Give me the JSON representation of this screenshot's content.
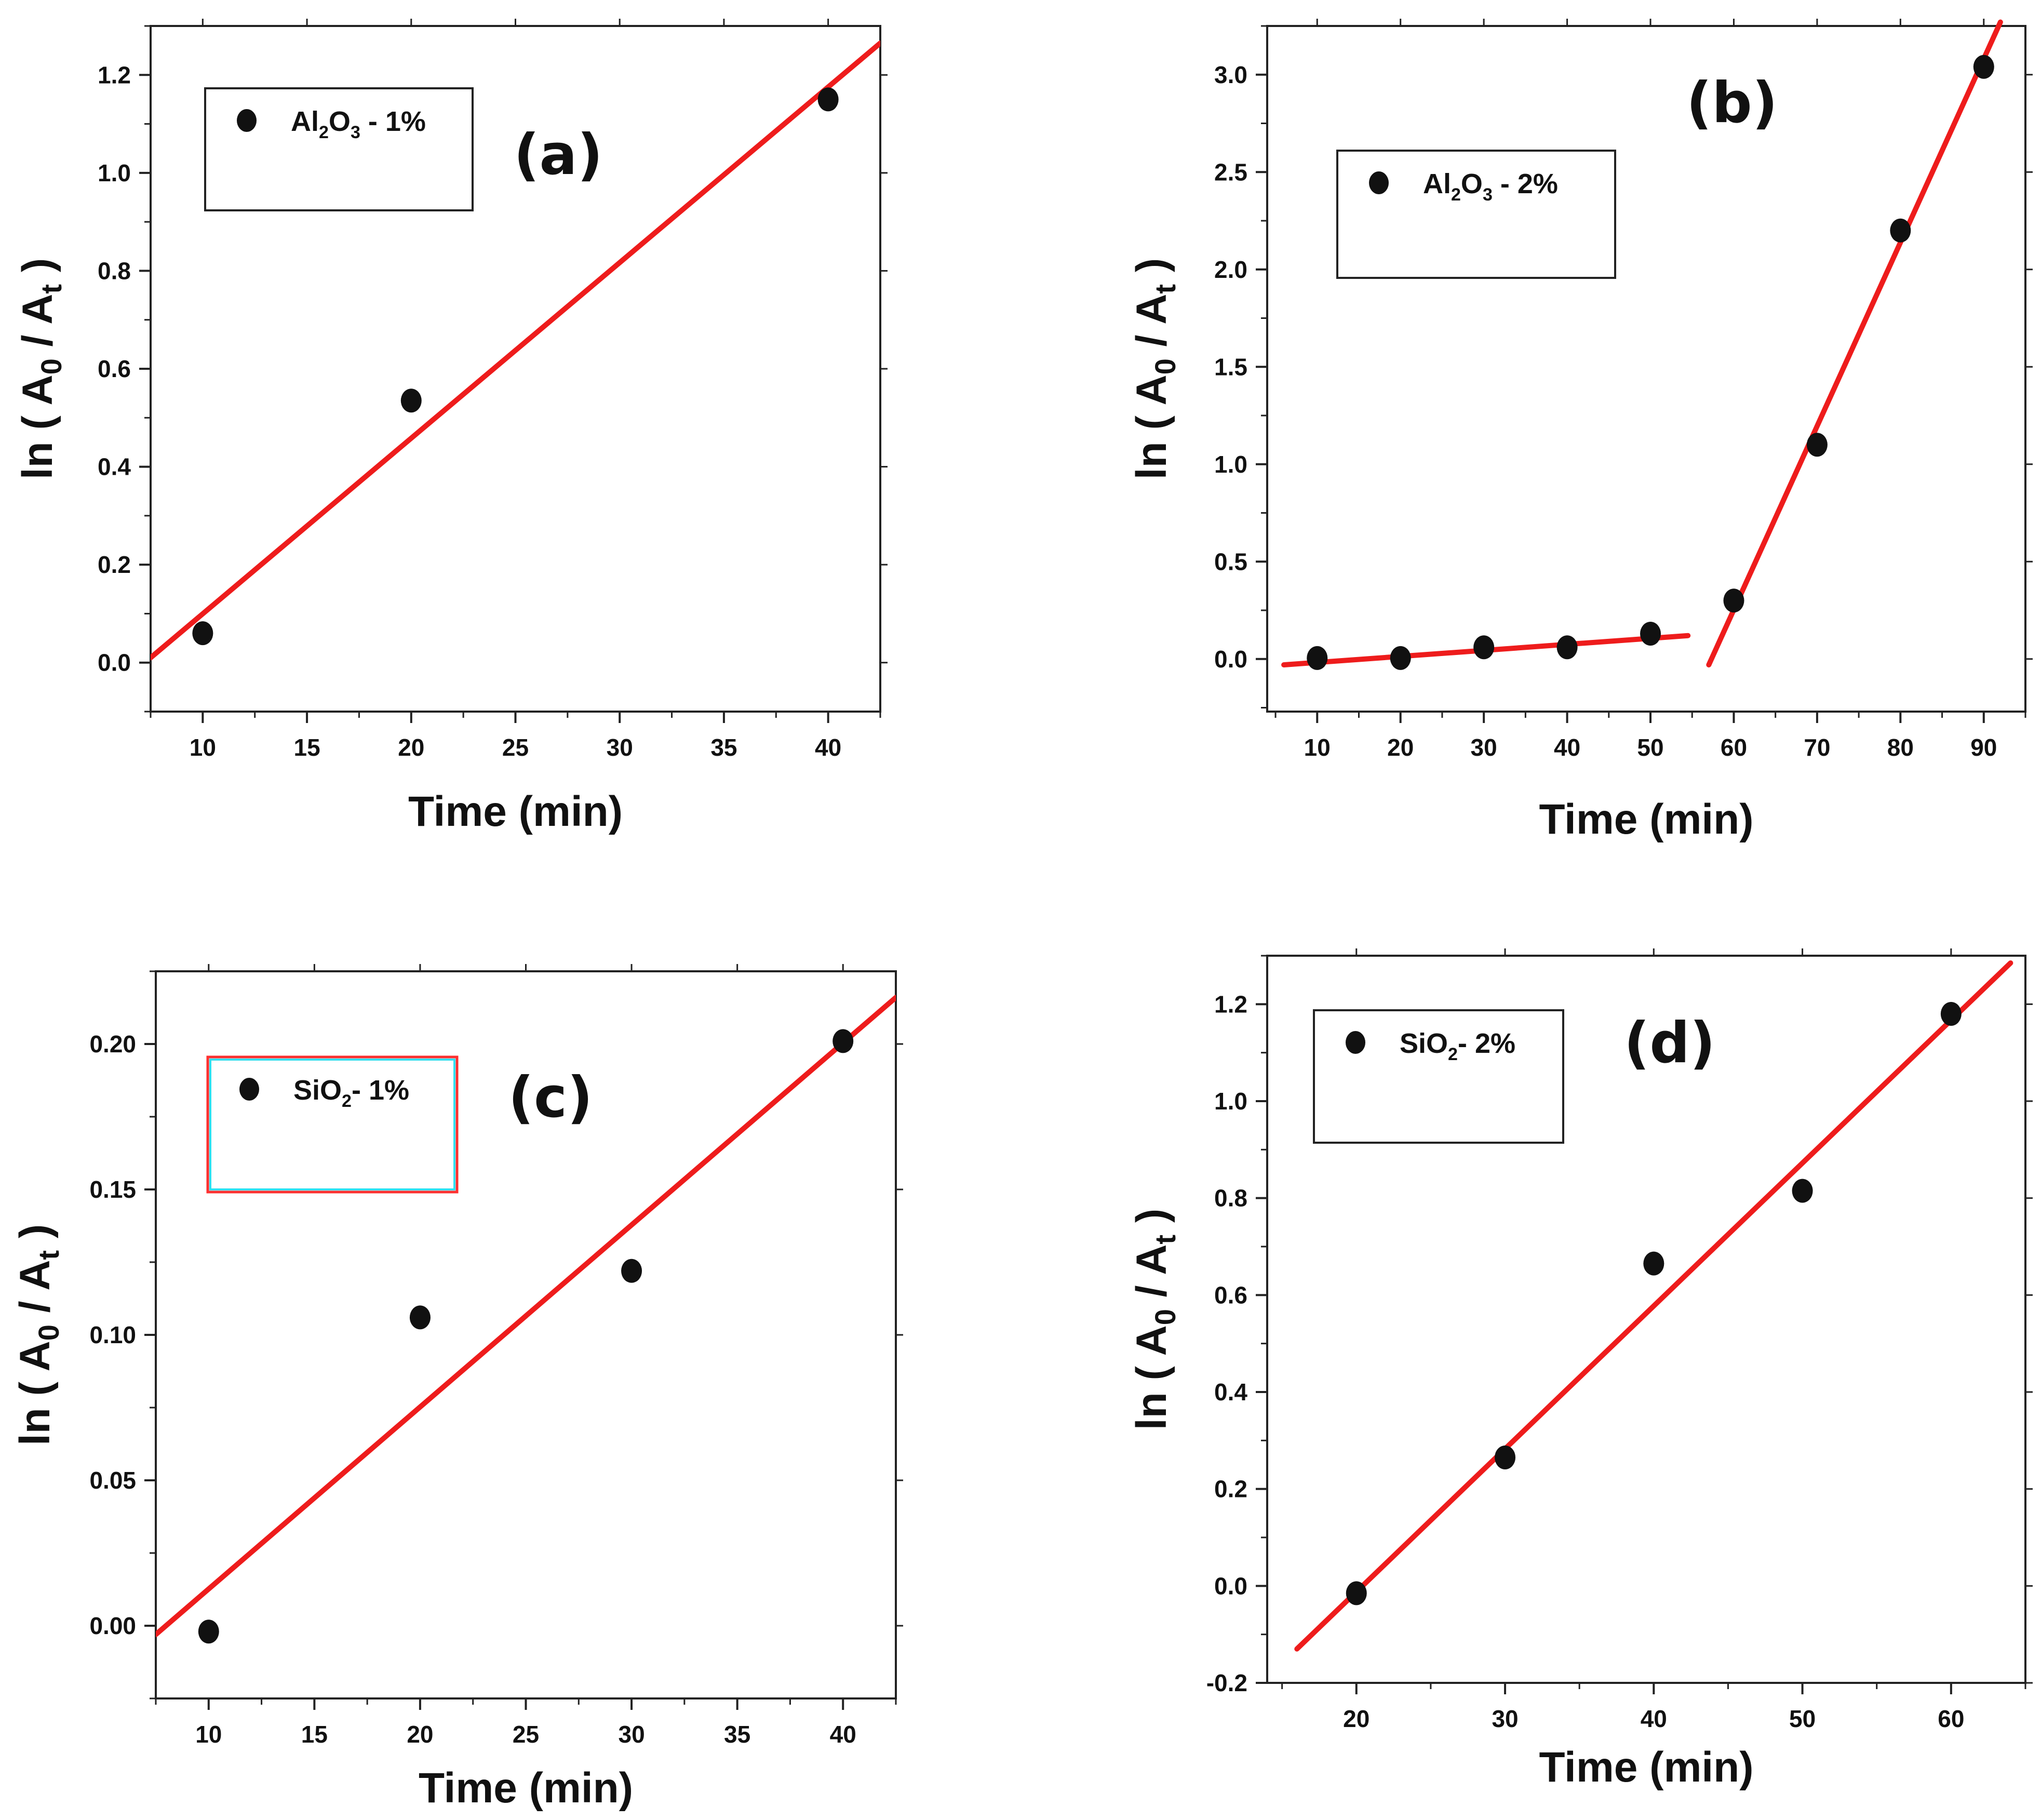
{
  "chart_data": [
    {
      "type": "scatter",
      "panel_label": "(a)",
      "xlabel": "Time (min)",
      "ylabel": {
        "pre": "ln ( A",
        "sub1": "0",
        "mid": " / A",
        "sub2": "t",
        "post": " )"
      },
      "legend": {
        "pre": "Al",
        "s1": "2",
        "mid": "O",
        "s2": "3",
        "post": " - 1%",
        "border": "#222222"
      },
      "xlim": [
        7.5,
        42.5
      ],
      "ylim": [
        -0.1,
        1.3
      ],
      "xticks": [
        10,
        15,
        20,
        25,
        30,
        35,
        40
      ],
      "xtick_labels": [
        "10",
        "15",
        "20",
        "25",
        "30",
        "35",
        "40"
      ],
      "yticks": [
        0.0,
        0.2,
        0.4,
        0.6,
        0.8,
        1.0,
        1.2
      ],
      "ytick_labels": [
        "0.0",
        "0.2",
        "0.4",
        "0.6",
        "0.8",
        "1.0",
        "1.2"
      ],
      "points": {
        "x": [
          10,
          20,
          40
        ],
        "y": [
          0.06,
          0.535,
          1.15
        ]
      },
      "fits": [
        {
          "x": [
            7.5,
            42.5
          ],
          "y": [
            0.01,
            1.265
          ]
        }
      ]
    },
    {
      "type": "scatter",
      "panel_label": "(b)",
      "xlabel": "Time (min)",
      "ylabel": {
        "pre": "ln ( A",
        "sub1": "0",
        "mid": " / A",
        "sub2": "t",
        "post": " )"
      },
      "legend": {
        "pre": "Al",
        "s1": "2",
        "mid": "O",
        "s2": "3",
        "post": " - 2%",
        "border": "#222222"
      },
      "xlim": [
        4,
        95
      ],
      "ylim": [
        -0.27,
        3.25
      ],
      "xticks": [
        10,
        20,
        30,
        40,
        50,
        60,
        70,
        80,
        90
      ],
      "xtick_labels": [
        "10",
        "20",
        "30",
        "40",
        "50",
        "60",
        "70",
        "80",
        "90"
      ],
      "yticks": [
        0.0,
        0.5,
        1.0,
        1.5,
        2.0,
        2.5,
        3.0
      ],
      "ytick_labels": [
        "0.0",
        "0.5",
        "1.0",
        "1.5",
        "2.0",
        "2.5",
        "3.0"
      ],
      "points": {
        "x": [
          10,
          20,
          30,
          40,
          50,
          60,
          70,
          80,
          90
        ],
        "y": [
          0.005,
          0.005,
          0.06,
          0.06,
          0.13,
          0.3,
          1.1,
          2.2,
          3.04
        ]
      },
      "fits": [
        {
          "x": [
            6,
            54.5
          ],
          "y": [
            -0.03,
            0.12
          ]
        },
        {
          "x": [
            57,
            92
          ],
          "y": [
            -0.03,
            3.27
          ]
        }
      ]
    },
    {
      "type": "scatter",
      "panel_label": "(c)",
      "xlabel": "Time (min)",
      "ylabel": {
        "pre": "ln ( A",
        "sub1": "0",
        "mid": " / A",
        "sub2": "t",
        "post": " )"
      },
      "legend": {
        "pre": "SiO",
        "s1": "2",
        "mid": "",
        "s2": "",
        "post": "- 1%",
        "border": "#ff3030",
        "border2": "#30e0f0"
      },
      "xlim": [
        7.5,
        42.5
      ],
      "ylim": [
        -0.025,
        0.225
      ],
      "xticks": [
        10,
        15,
        20,
        25,
        30,
        35,
        40
      ],
      "xtick_labels": [
        "10",
        "15",
        "20",
        "25",
        "30",
        "35",
        "40"
      ],
      "yticks": [
        0.0,
        0.05,
        0.1,
        0.15,
        0.2
      ],
      "ytick_labels": [
        "0.00",
        "0.05",
        "0.10",
        "0.15",
        "0.20"
      ],
      "points": {
        "x": [
          10,
          20,
          30,
          40
        ],
        "y": [
          -0.002,
          0.106,
          0.122,
          0.201
        ]
      },
      "fits": [
        {
          "x": [
            7.5,
            42.5
          ],
          "y": [
            -0.003,
            0.216
          ]
        }
      ]
    },
    {
      "type": "scatter",
      "panel_label": "(d)",
      "xlabel": "Time (min)",
      "ylabel": {
        "pre": "ln ( A",
        "sub1": "0",
        "mid": " / A",
        "sub2": "t",
        "post": " )"
      },
      "legend": {
        "pre": "SiO",
        "s1": "2",
        "mid": "",
        "s2": "",
        "post": "- 2%",
        "border": "#222222"
      },
      "xlim": [
        14,
        65
      ],
      "ylim": [
        -0.2,
        1.3
      ],
      "xticks": [
        20,
        30,
        40,
        50,
        60
      ],
      "xtick_labels": [
        "20",
        "30",
        "40",
        "50",
        "60"
      ],
      "yticks": [
        -0.2,
        0.0,
        0.2,
        0.4,
        0.6,
        0.8,
        1.0,
        1.2
      ],
      "ytick_labels": [
        "-0.2",
        "0.0",
        "0.2",
        "0.4",
        "0.6",
        "0.8",
        "1.0",
        "1.2"
      ],
      "points": {
        "x": [
          20,
          30,
          40,
          50,
          60
        ],
        "y": [
          -0.015,
          0.265,
          0.665,
          0.815,
          1.18
        ]
      },
      "fits": [
        {
          "x": [
            16,
            64
          ],
          "y": [
            -0.13,
            1.285
          ]
        }
      ]
    }
  ],
  "style": {
    "fit_color": "#ee1c1c",
    "point_color": "#111111",
    "axis_color": "#222222"
  }
}
